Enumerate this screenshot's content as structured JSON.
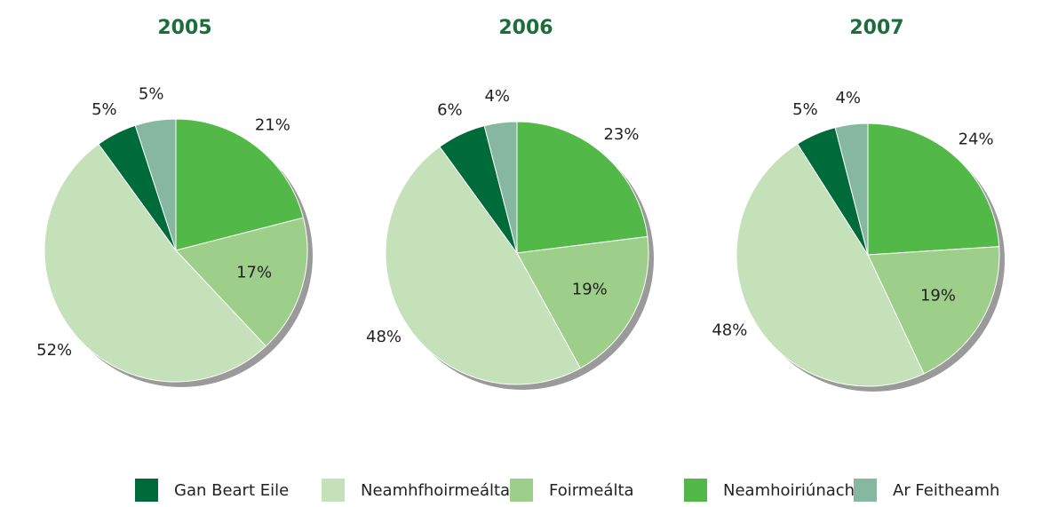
{
  "legend": {
    "labels": [
      "Gan Beart Eile",
      "Neamhfhoirmeálta",
      "Foirmeálta",
      "Neamhoiriúnach",
      "Ar Feitheamh"
    ],
    "colors": [
      "#006b3a",
      "#c4e1ba",
      "#9dcf8a",
      "#52b848",
      "#86b7a0"
    ]
  },
  "chart_data": [
    {
      "type": "pie",
      "title": "2005",
      "values": [
        5,
        52,
        17,
        21,
        5
      ],
      "value_labels": [
        "5%",
        "52%",
        "17%",
        "21%",
        "5%"
      ]
    },
    {
      "type": "pie",
      "title": "2006",
      "values": [
        6,
        48,
        19,
        23,
        4
      ],
      "value_labels": [
        "6%",
        "48%",
        "19%",
        "23%",
        "4%"
      ]
    },
    {
      "type": "pie",
      "title": "2007",
      "values": [
        5,
        48,
        19,
        24,
        4
      ],
      "value_labels": [
        "5%",
        "48%",
        "19%",
        "24%",
        "4%"
      ]
    }
  ]
}
